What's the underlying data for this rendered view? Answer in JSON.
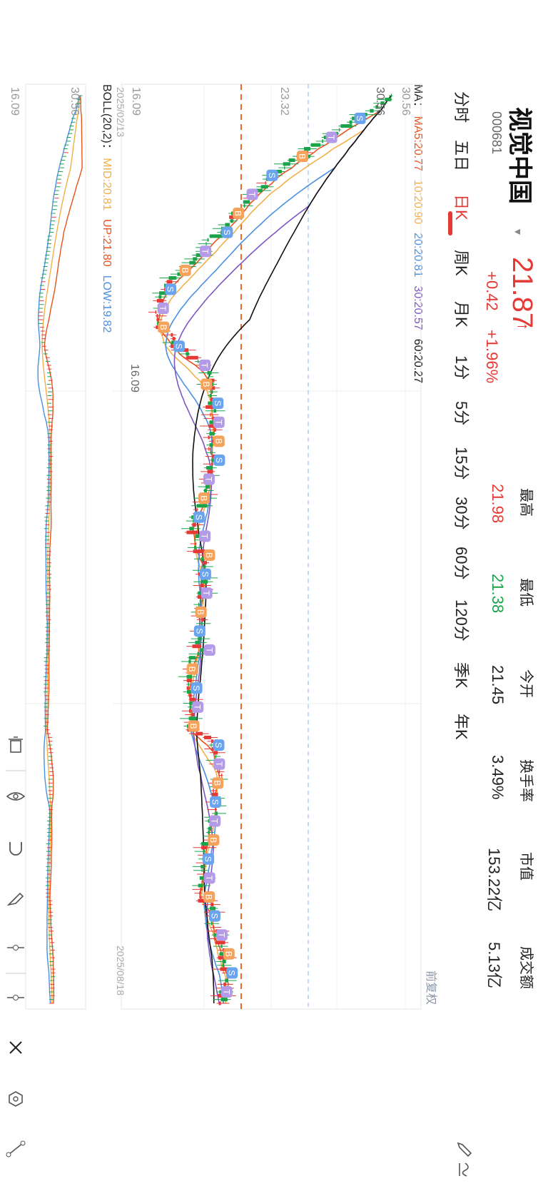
{
  "header": {
    "name": "视觉中国",
    "code": "000681",
    "price": "21.87",
    "change": "+0.42",
    "change_pct": "+1.96%",
    "up_color": "#e53935",
    "down_color": "#1aa34a"
  },
  "stats": [
    {
      "label": "最高",
      "value": "21.98",
      "color": "#e53935"
    },
    {
      "label": "最低",
      "value": "21.38",
      "color": "#1aa34a"
    },
    {
      "label": "今开",
      "value": "21.45",
      "color": "#222222"
    },
    {
      "label": "换手率",
      "value": "3.49%",
      "color": "#222222"
    },
    {
      "label": "市值",
      "value": "153.22亿",
      "color": "#222222"
    },
    {
      "label": "成交额",
      "value": "5.13亿",
      "color": "#222222"
    }
  ],
  "tabs": [
    "分时",
    "五日",
    "日K",
    "周K",
    "月K",
    "1分",
    "5分",
    "15分",
    "30分",
    "60分",
    "120分",
    "季K",
    "年K"
  ],
  "active_tab": "日K",
  "adjust_label": "前复权",
  "legend_ma": {
    "prefix": "MA：",
    "items": [
      {
        "text": "MA5:20.77",
        "color": "#e8531c"
      },
      {
        "text": "10:20.90",
        "color": "#f2b04a"
      },
      {
        "text": "20:20.81",
        "color": "#4a90e2"
      },
      {
        "text": "30:20.57",
        "color": "#7e57c2"
      },
      {
        "text": "60:20.27",
        "color": "#111111"
      }
    ]
  },
  "legend_boll": {
    "prefix": "BOLL(20,2)：",
    "items": [
      {
        "text": "MID:20.81",
        "color": "#f2b04a"
      },
      {
        "text": "UP:21.80",
        "color": "#e8531c"
      },
      {
        "text": "LOW:19.82",
        "color": "#4a90e2"
      }
    ]
  },
  "chart_data": {
    "type": "candlestick",
    "x_range": [
      "2025/02/13",
      "2025/08/18"
    ],
    "date_labels": [
      "2025/02/13",
      "2025/08/18"
    ],
    "main_y_range": [
      16.09,
      30.56
    ],
    "y_labels": [
      "30.56",
      "23.32",
      "16.09"
    ],
    "high_annotation": "30.56",
    "low_annotation": "16.09",
    "dashed_price_line": 21.87,
    "markers": [
      "B",
      "S",
      "T"
    ],
    "sub_chart": {
      "indicator": "BOLL(20,2)",
      "y_labels": [
        "30.56",
        "16.09"
      ]
    },
    "grid": true
  },
  "toolbar": {
    "icons": [
      "close-icon",
      "hexagon-icon",
      "ray-line-icon",
      "segment-icon",
      "horizontal-line-icon",
      "brush-icon",
      "magnet-icon",
      "eye-icon",
      "trash-icon"
    ]
  }
}
